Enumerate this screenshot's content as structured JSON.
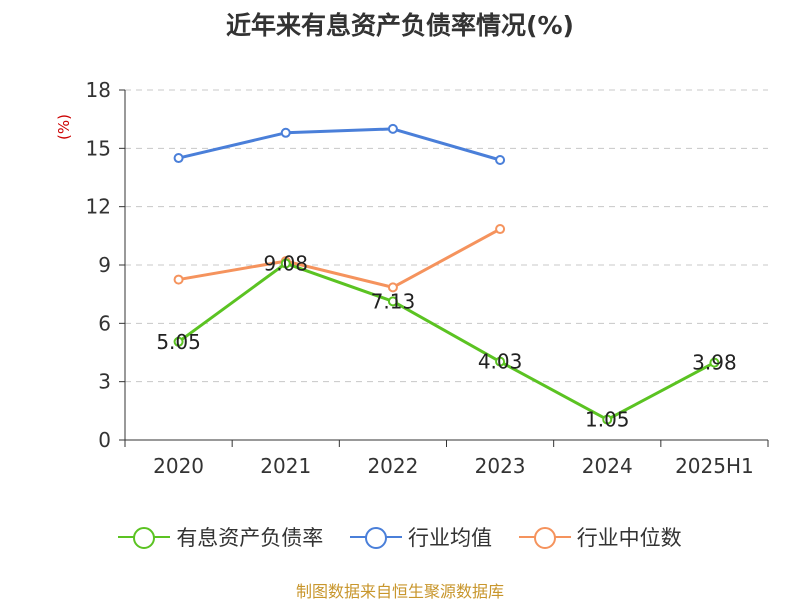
{
  "chart_data": {
    "type": "line",
    "title": "近年来有息资产负债率情况(%)",
    "unit_label": "(%)",
    "categories": [
      "2020",
      "2021",
      "2022",
      "2023",
      "2024",
      "2025H1"
    ],
    "ylim": [
      0,
      18
    ],
    "yticks": [
      0,
      3,
      6,
      9,
      12,
      15,
      18
    ],
    "grid": true,
    "legend_position": "bottom",
    "series": [
      {
        "name": "有息资产负债率",
        "color": "#5bc322",
        "values": [
          5.05,
          9.08,
          7.13,
          4.03,
          1.05,
          3.98
        ],
        "labels": [
          "5.05",
          "9.08",
          "7.13",
          "4.03",
          "1.05",
          "3.98"
        ]
      },
      {
        "name": "行业均值",
        "color": "#4a7fd9",
        "values": [
          14.5,
          15.8,
          16.0,
          14.4,
          null,
          null
        ]
      },
      {
        "name": "行业中位数",
        "color": "#f5935d",
        "values": [
          8.25,
          9.2,
          7.85,
          10.85,
          null,
          null
        ]
      }
    ]
  },
  "source": "制图数据来自恒生聚源数据库"
}
